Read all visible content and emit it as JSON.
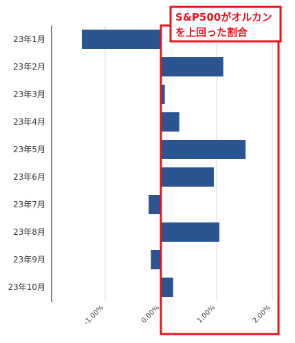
{
  "chart_data": {
    "type": "bar",
    "orientation": "horizontal",
    "title": "",
    "xlabel": "",
    "ylabel": "",
    "categories": [
      "23年1月",
      "23年2月",
      "23年3月",
      "23年4月",
      "23年5月",
      "23年6月",
      "23年7月",
      "23年8月",
      "23年9月",
      "23年10月"
    ],
    "values": [
      -1.42,
      1.12,
      0.07,
      0.33,
      1.52,
      0.95,
      -0.22,
      1.05,
      -0.18,
      0.22
    ],
    "xlim": [
      -2.0,
      2.1
    ],
    "xticks": [
      -1.0,
      0.0,
      1.0,
      2.0
    ],
    "xtick_labels": [
      "-1.00%",
      "0.00%",
      "1.00%",
      "2.00%"
    ],
    "grid": "vertical",
    "bar_color": "#2b5590",
    "annotation": {
      "lines": [
        "S&P500がオルカン",
        "を上回った割合"
      ],
      "highlight": "positive-region",
      "color": "#e8141c"
    }
  }
}
